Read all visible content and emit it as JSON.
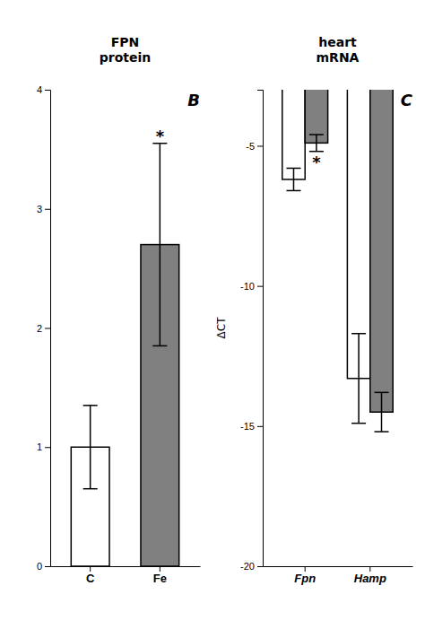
{
  "chart_data": [
    {
      "type": "bar",
      "title": "FPN\nprotein",
      "categories": [
        "C",
        "Fe"
      ],
      "values": [
        1.0,
        2.7
      ],
      "errors": [
        0.35,
        0.85
      ],
      "colors": [
        "white",
        "#808080"
      ],
      "ylim": [
        0,
        4
      ],
      "yticks": [
        0,
        1,
        2,
        3,
        4
      ],
      "grid": false,
      "annotations": [
        {
          "text": "*",
          "category": "Fe"
        },
        {
          "text": "B"
        }
      ]
    },
    {
      "type": "bar",
      "title": "heart\nmRNA",
      "ylabel": "ΔCT",
      "categories": [
        "Fpn",
        "Hamp"
      ],
      "series": [
        {
          "color": "white",
          "values": [
            -6.2,
            -13.3
          ],
          "errors": [
            0.4,
            1.6
          ]
        },
        {
          "color": "#808080",
          "values": [
            -4.9,
            -14.5
          ],
          "errors": [
            0.3,
            0.7
          ]
        }
      ],
      "ylim": [
        -20,
        -3
      ],
      "yticks": [
        -20,
        -15,
        -10,
        -5
      ],
      "grid": false,
      "annotations": [
        {
          "text": "*",
          "category": "Fpn",
          "series": 1
        },
        {
          "text": "C"
        }
      ]
    }
  ]
}
